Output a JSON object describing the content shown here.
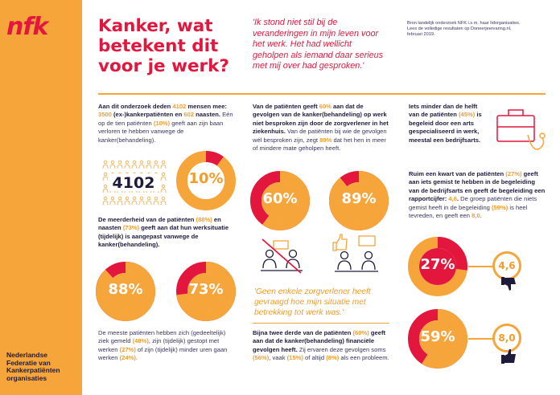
{
  "brand": {
    "logo": "nfk",
    "org_lines": [
      "Nederlandse",
      "Federatie van",
      "Kankerpatiënten",
      "organisaties"
    ]
  },
  "header": {
    "title": "Kanker, wat betekent dit voor je werk?",
    "quote": "'Ik stond niet stil bij de veranderingen in mijn leven voor het werk. Het had wellicht geholpen als iemand daar serieus met mij over had gesproken.'",
    "source_lines": [
      "Bron landelijk onderzoek NFK i.s.m. haar lidorganisaties.",
      "Lees de volledige resultaten op Doneerjeervaring.nl,",
      "februari 2019."
    ]
  },
  "col1": {
    "p1": {
      "a": "Aan dit onderzoek deden ",
      "n1": "4102",
      "b": " mensen mee: ",
      "n2": "3500",
      "c": " (ex-)kankerpatiënten en ",
      "n3": "602",
      "d": " naasten.",
      "e": " Eén op de tien patiënten ",
      "n4": "(10%)",
      "f": " geeft aan zijn baan verloren te hebben vanwege de kanker(behandeling)."
    },
    "count_label": "4102",
    "ring1": "10%",
    "p2": {
      "a": "De meerderheid van de patiënten ",
      "n1": "(88%)",
      "b": " en naasten ",
      "n2": "(73%)",
      "c": " geeft aan dat hun werksituatie (tijdelijk) is aangepast vanwege de kanker(behandeling)."
    },
    "ring2": "88%",
    "ring3": "73%",
    "p3": {
      "a": "De meeste patiënten hebben zich (gedeeltelijk) ziek gemeld ",
      "n1": "(48%)",
      "b": ", zijn (tijdelijk) gestopt met werken ",
      "n2": "(27%)",
      "c": " of zijn (tijdelijk) minder uren gaan werken ",
      "n3": "(24%)",
      "d": "."
    }
  },
  "col2": {
    "p1": {
      "a": "Van de patiënten geeft ",
      "n1": "60%",
      "b": " aan dat de gevolgen van de kanker(behandeling) op werk niet besproken zijn door de zorgverlener in het ziekenhuis.",
      "c": " Van de patiënten bij wie de gevolgen wél besproken zijn, zegt ",
      "n2": "89%",
      "d": " dat het hen in meer of mindere mate geholpen heeft."
    },
    "ring1": "60%",
    "ring2": "89%",
    "quote": "'Geen enkele zorgverlener heeft gevraagd hoe mijn situatie met betrekking tot werk was.'",
    "p2": {
      "a": "Bijna twee derde van de patiënten ",
      "n1": "(60%)",
      "b": " geeft aan dat de kanker(behandeling) financiële gevolgen heeft.",
      "c": " Zij ervaren deze gevolgen soms ",
      "n2": "(56%)",
      "d": ", vaak ",
      "n3": "(15%)",
      "e": " of altijd ",
      "n4": "(8%)",
      "f": " als een probleem."
    }
  },
  "col3": {
    "p1": {
      "a": "Iets minder dan de helft van de patiënten ",
      "n1": "(45%)",
      "b": " is begeleid door een arts gespecialiseerd in werk, meestal een bedrijfsarts."
    },
    "p2": {
      "a": "Ruim een kwart van de patiënten ",
      "n1": "(27%)",
      "b": " geeft aan iets gemist te hebben in de begeleiding van de bedrijfsarts en geeft de begeleiding een rapportcijfer: ",
      "n2": "4,6",
      "c": ".",
      "d": " De groep patiënten die niets gemist heeft in de begeleiding ",
      "n3": "(59%)",
      "e": " is heel tevreden, en geeft een ",
      "n4": "8,0",
      "f": "."
    },
    "ring1": "27%",
    "badge1": "4,6",
    "ring2": "59%",
    "badge2": "8,0"
  },
  "chart_data": [
    {
      "type": "pie",
      "values": [
        10,
        90
      ]
    },
    {
      "type": "pie",
      "values": [
        88,
        12
      ]
    },
    {
      "type": "pie",
      "values": [
        73,
        27
      ]
    },
    {
      "type": "pie",
      "values": [
        60,
        40
      ]
    },
    {
      "type": "pie",
      "values": [
        89,
        11
      ]
    },
    {
      "type": "pie",
      "values": [
        27,
        73
      ]
    },
    {
      "type": "pie",
      "values": [
        59,
        41
      ]
    }
  ],
  "colors": {
    "red": "#e3173e",
    "orange": "#f6a53a",
    "navy": "#1e1a3c"
  },
  "icons": [
    "people-grid-icon",
    "crossed-out-conversation-icon",
    "thumbs-up-conversation-icon",
    "briefcase-stethoscope-icon",
    "thumbs-down-icon",
    "thumbs-up-icon"
  ]
}
